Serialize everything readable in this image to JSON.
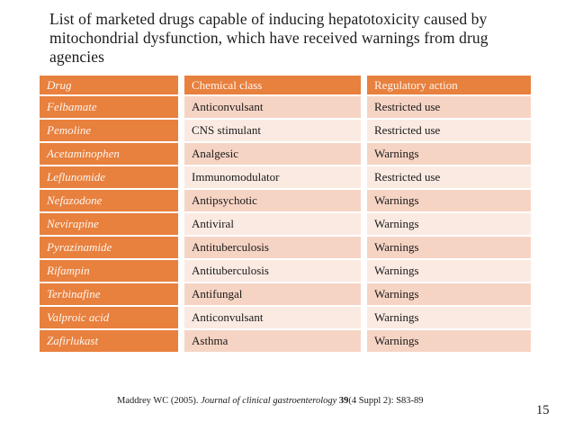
{
  "slide": {
    "title": "List of marketed drugs capable of inducing hepatotoxicity caused by mitochondrial dysfunction, which have received warnings from drug agencies",
    "page_number": "15",
    "citation": {
      "prefix": "Maddrey WC (2005). ",
      "journal_italic": "Journal of clinical gastroenterology ",
      "volume_bold": "39",
      "suffix": "(4 Suppl 2): S83-89"
    }
  },
  "table": {
    "columns": [
      "Drug",
      "Chemical class",
      "Regulatory action"
    ],
    "rows": [
      {
        "drug": "Felbamate",
        "chemical_class": "Anticonvulsant",
        "regulatory_action": "Restricted use"
      },
      {
        "drug": "Pemoline",
        "chemical_class": "CNS stimulant",
        "regulatory_action": "Restricted use"
      },
      {
        "drug": "Acetaminophen",
        "chemical_class": "Analgesic",
        "regulatory_action": "Warnings"
      },
      {
        "drug": "Leflunomide",
        "chemical_class": "Immunomodulator",
        "regulatory_action": "Restricted use"
      },
      {
        "drug": "Nefazodone",
        "chemical_class": "Antipsychotic",
        "regulatory_action": "Warnings"
      },
      {
        "drug": "Nevirapine",
        "chemical_class": "Antiviral",
        "regulatory_action": "Warnings"
      },
      {
        "drug": "Pyrazinamide",
        "chemical_class": "Antituberculosis",
        "regulatory_action": "Warnings"
      },
      {
        "drug": "Rifampin",
        "chemical_class": "Antituberculosis",
        "regulatory_action": "Warnings"
      },
      {
        "drug": "Terbinafine",
        "chemical_class": "Antifungal",
        "regulatory_action": "Warnings"
      },
      {
        "drug": "Valproic acid",
        "chemical_class": "Anticonvulsant",
        "regulatory_action": "Warnings"
      },
      {
        "drug": "Zafirlukast",
        "chemical_class": "Asthma",
        "regulatory_action": "Warnings"
      }
    ]
  },
  "colors": {
    "accent_orange": "#E8803E",
    "row_dark": "#F6D4C4",
    "row_light": "#FBEAE2",
    "header_text": "#FDF6F0",
    "body_text": "#1A1A1A"
  }
}
